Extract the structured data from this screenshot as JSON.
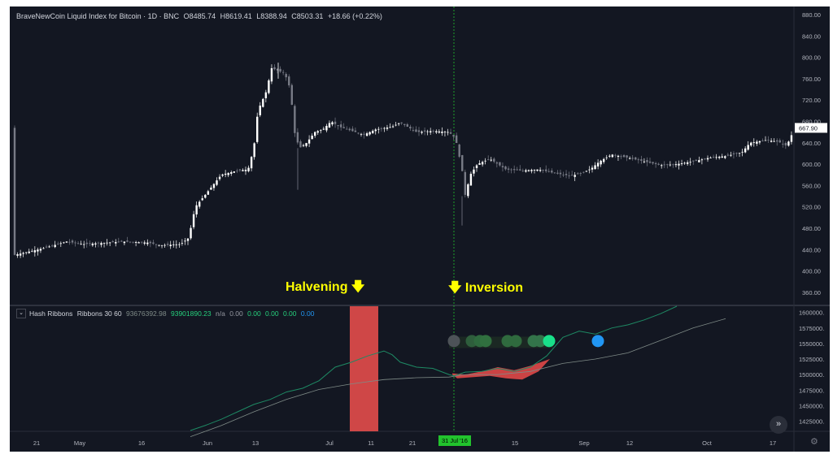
{
  "main_legend": {
    "title": "BraveNewCoin Liquid Index for Bitcoin · 1D · BNC",
    "open": "O8485.74",
    "high": "H8619.41",
    "low": "L8388.94",
    "close": "C8503.31",
    "change": "+18.66 (+0.22%)"
  },
  "indicator_legend": {
    "name": "Hash Ribbons",
    "params": "Ribbons 30 60",
    "v1": "93676392.98",
    "v2": "93901890.23",
    "v3": "n/a",
    "v4": "0.00",
    "v5": "0.00",
    "v6": "0.00",
    "v7": "0.00",
    "v8": "0.00"
  },
  "annotations": {
    "halvening": "Halvening",
    "inversion": "Inversion"
  },
  "price_axis": {
    "ticks": [
      "880.00",
      "840.00",
      "800.00",
      "760.00",
      "720.00",
      "680.00",
      "640.00",
      "600.00",
      "560.00",
      "520.00",
      "480.00",
      "440.00",
      "400.00",
      "360.00"
    ],
    "last_price": "667.90"
  },
  "hash_axis": {
    "ticks": [
      "1600000.",
      "1575000.",
      "1550000.",
      "1525000.",
      "1500000.",
      "1475000.",
      "1450000.",
      "1425000."
    ]
  },
  "time_axis": {
    "ticks": [
      "21",
      "May",
      "16",
      "Jun",
      "13",
      "Jul",
      "11",
      "21",
      "15",
      "Sep",
      "12",
      "Oct",
      "17"
    ],
    "crosshair_date": "31 Jul '16"
  },
  "colors": {
    "background": "#131722",
    "candle_up": "#ffffff",
    "candle_down": "#787b86",
    "fast_ribbon": "#1e8a64",
    "slow_ribbon": "#7f8b87",
    "capitulation_fill": "#e04848",
    "halvening_band": "#d94a4a",
    "crosshair": "#22c32d",
    "annotation": "#ffff00",
    "buy_signal": "#2196f3"
  },
  "icons": {
    "scroll": "double-chevron-right-icon",
    "settings": "gear-icon",
    "collapse": "chevron-down-icon"
  },
  "chart_data": {
    "type": "line",
    "title": "BraveNewCoin Liquid Index for Bitcoin · 1D · BNC",
    "price_range": [
      340,
      880
    ],
    "hash_range": [
      1410000,
      1610000
    ],
    "halvening_label": "Halvening",
    "inversion_label": "Inversion",
    "last_price": 667.9
  }
}
